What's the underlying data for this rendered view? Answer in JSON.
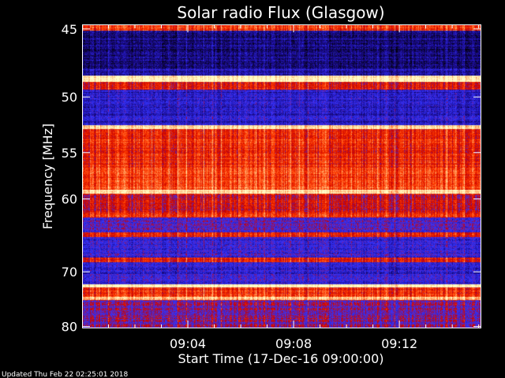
{
  "chart_data": {
    "type": "heatmap",
    "title": "Solar radio Flux (Glasgow)",
    "xlabel": "Start Time (17-Dec-16 09:00:00)",
    "ylabel": "Frequency [MHz]",
    "x_ticks": [
      "09:04",
      "09:08",
      "09:12"
    ],
    "x_tick_minutes": [
      4,
      8,
      12
    ],
    "xlim_minutes": [
      0,
      15.1
    ],
    "y_ticks": [
      45,
      50,
      55,
      60,
      70,
      80
    ],
    "ylim": [
      44.7,
      80.4
    ],
    "y_scale": "reciprocal",
    "grid": false,
    "colormap": [
      "#000000",
      "#1a0a8c",
      "#3434ff",
      "#c80000",
      "#ff3c00",
      "#ffb070",
      "#ffffc8"
    ],
    "bands": [
      {
        "f0": 44.7,
        "f1": 45.1,
        "level": 0.62
      },
      {
        "f0": 45.1,
        "f1": 47.8,
        "level": 0.14
      },
      {
        "f0": 47.8,
        "f1": 48.3,
        "level": 0.22
      },
      {
        "f0": 48.3,
        "f1": 48.8,
        "level": 0.98
      },
      {
        "f0": 48.8,
        "f1": 49.4,
        "level": 0.55
      },
      {
        "f0": 49.4,
        "f1": 52.4,
        "level": 0.25
      },
      {
        "f0": 52.4,
        "f1": 52.8,
        "level": 0.9
      },
      {
        "f0": 52.8,
        "f1": 56.5,
        "level": 0.6
      },
      {
        "f0": 56.5,
        "f1": 58.9,
        "level": 0.66
      },
      {
        "f0": 58.9,
        "f1": 59.4,
        "level": 0.95
      },
      {
        "f0": 59.4,
        "f1": 61.6,
        "level": 0.5
      },
      {
        "f0": 61.6,
        "f1": 62.2,
        "level": 0.6
      },
      {
        "f0": 62.2,
        "f1": 64.2,
        "level": 0.35
      },
      {
        "f0": 64.2,
        "f1": 64.8,
        "level": 0.6
      },
      {
        "f0": 64.8,
        "f1": 67.8,
        "level": 0.3
      },
      {
        "f0": 67.8,
        "f1": 68.5,
        "level": 0.55
      },
      {
        "f0": 68.5,
        "f1": 72.0,
        "level": 0.28
      },
      {
        "f0": 72.0,
        "f1": 72.6,
        "level": 0.98
      },
      {
        "f0": 72.6,
        "f1": 74.2,
        "level": 0.62
      },
      {
        "f0": 74.2,
        "f1": 74.8,
        "level": 0.85
      },
      {
        "f0": 74.8,
        "f1": 80.4,
        "level": 0.42
      }
    ]
  },
  "footer": {
    "updated": "Updated Thu Feb 22 02:25:01 2018"
  }
}
